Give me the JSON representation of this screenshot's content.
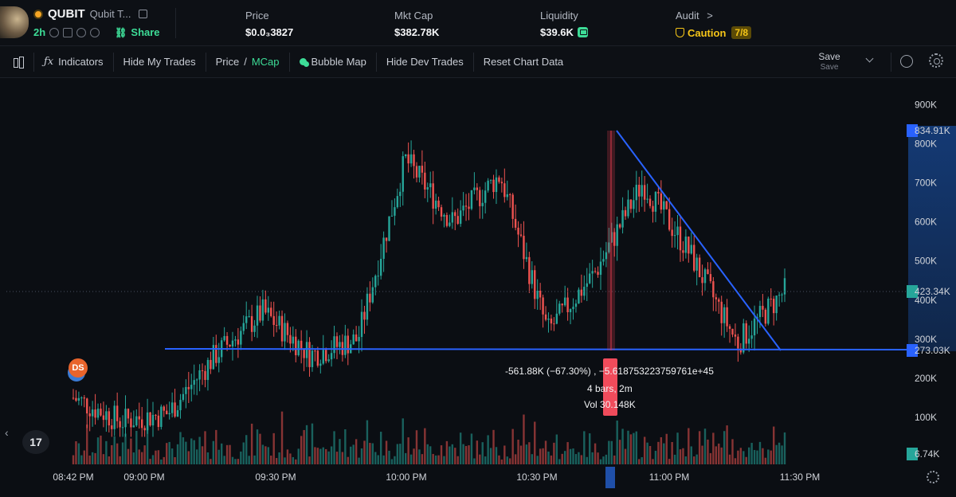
{
  "header": {
    "token_symbol": "QUBIT",
    "token_name": "Qubit T...",
    "age": "2h",
    "share_label": "Share",
    "stats": {
      "price_label": "Price",
      "price_value": "$0.0₃3827",
      "mktcap_label": "Mkt Cap",
      "mktcap_value": "$382.78K",
      "liquidity_label": "Liquidity",
      "liquidity_value": "$39.6K",
      "audit_label": "Audit",
      "audit_chevron": ">",
      "audit_status": "Caution",
      "audit_score": "7/8"
    }
  },
  "toolbar": {
    "indicators": "Indicators",
    "hide_my_trades": "Hide My Trades",
    "price_label": "Price",
    "price_sep": "/",
    "mcap_label": "MCap",
    "bubble_map": "Bubble Map",
    "hide_dev_trades": "Hide Dev Trades",
    "reset_chart": "Reset Chart Data",
    "save_main": "Save",
    "save_sub": "Save"
  },
  "chart": {
    "y_ticks": [
      "900K",
      "800K",
      "700K",
      "600K",
      "500K",
      "400K",
      "300K",
      "200K",
      "100K"
    ],
    "x_ticks": [
      "08:42 PM",
      "09:00 PM",
      "09:30 PM",
      "10:00 PM",
      "10:30 PM",
      "11:00 PM",
      "11:30 PM"
    ],
    "badges": {
      "top": "834.91K",
      "current": "423.34K",
      "support": "273.03K",
      "volume": "6.74K"
    },
    "measurement": {
      "line1": "-561.88K (−67.30%) , −5.618753223759761e+45",
      "line2": "4 bars, 2m",
      "line3": "Vol 30.148K"
    },
    "ds_badge": "DS",
    "tv_logo": "17"
  },
  "chart_data": {
    "type": "candlestick",
    "x_range": [
      "08:42 PM",
      "11:30 PM"
    ],
    "ylim": [
      0,
      950000
    ],
    "y_unit": "market cap (USD)",
    "approx_close_path": [
      {
        "t": "08:42 PM",
        "v": 150000
      },
      {
        "t": "08:50 PM",
        "v": 90000
      },
      {
        "t": "09:00 PM",
        "v": 110000
      },
      {
        "t": "09:10 PM",
        "v": 260000
      },
      {
        "t": "09:20 PM",
        "v": 370000
      },
      {
        "t": "09:30 PM",
        "v": 260000
      },
      {
        "t": "09:45 PM",
        "v": 300000
      },
      {
        "t": "10:00 PM",
        "v": 760000
      },
      {
        "t": "10:10 PM",
        "v": 600000
      },
      {
        "t": "10:15 PM",
        "v": 720000
      },
      {
        "t": "10:30 PM",
        "v": 320000
      },
      {
        "t": "10:45 PM",
        "v": 470000
      },
      {
        "t": "10:55 PM",
        "v": 700000
      },
      {
        "t": "11:05 PM",
        "v": 520000
      },
      {
        "t": "11:15 PM",
        "v": 290000
      },
      {
        "t": "11:25 PM",
        "v": 423340
      }
    ],
    "annotations": {
      "support_line": 273030,
      "resistance_top": 834910,
      "current": 423340
    },
    "volume_last": 6740
  }
}
